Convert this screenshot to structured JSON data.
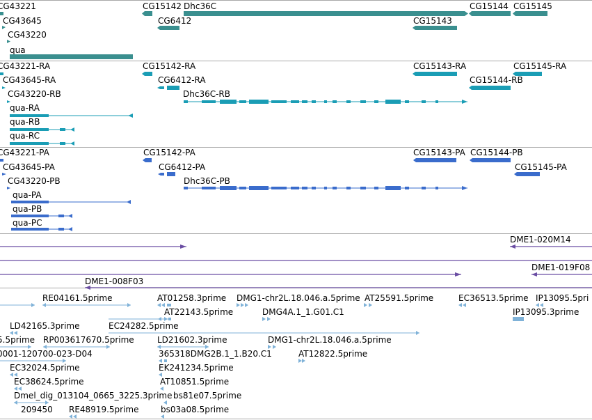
{
  "colors": {
    "gene": "#3a8f8f",
    "transcript": "#1a9db5",
    "protein": "#3a6ccc",
    "clone": "#6b4ea3",
    "est": "#7fb2d8",
    "divider": "#a8a8a8"
  },
  "tracks": [
    {
      "name": "genes",
      "color": "gene",
      "labels": [
        "CG43221",
        "CG43645",
        "CG43220",
        "qua",
        "CG15142",
        "Dhc36C",
        "CG6412",
        "CG15143",
        "CG15144",
        "CG15145"
      ]
    },
    {
      "name": "transcripts",
      "color": "transcript",
      "labels": [
        "CG43221-RA",
        "CG43645-RA",
        "CG43220-RB",
        "qua-RA",
        "qua-RB",
        "qua-RC",
        "CG15142-RA",
        "CG6412-RA",
        "Dhc36C-RB",
        "CG15143-RA",
        "CG15145-RA",
        "CG15144-RB"
      ]
    },
    {
      "name": "proteins",
      "color": "protein",
      "labels": [
        "CG43221-PA",
        "CG43645-PA",
        "CG43220-PB",
        "qua-PA",
        "qua-PB",
        "qua-PC",
        "CG15142-PA",
        "CG6412-PA",
        "Dhc36C-PB",
        "CG15143-PA",
        "CG15144-PB",
        "CG15145-PA"
      ]
    },
    {
      "name": "clones",
      "color": "clone",
      "labels": [
        "DME1-020M14",
        "DME1-019F08",
        "DME1-008F03"
      ]
    },
    {
      "name": "ests",
      "color": "est",
      "labels": [
        "RE04161.5prime",
        "AT01258.3prime",
        "DMG1-chr2L.18.046.a.5prime",
        "AT25591.5prime",
        "EC36513.5prime",
        "IP13095.5pri",
        "AT22143.5prime",
        "DMG4A.1_1.G01.C1",
        "IP13095.3prime",
        "LD42165.3prime",
        "EC24282.5prime",
        "5.5prime",
        "RP003617670.5prime",
        "LD21602.3prime",
        "DMG1-chr2L.18.046.a.5prime",
        "0001-120700-023-D04",
        "365318DMG2B.1_1.B20.C1",
        "AT12822.5prime",
        "EC32024.5prime",
        "EK241234.5prime",
        "EC38624.5prime",
        "AT10851.5prime",
        "Dmel_dig_013104_0665_3225.3prime",
        "bs81e07.5prime",
        "209450",
        "RE48919.5prime",
        "bs03a08.5prime"
      ]
    }
  ]
}
